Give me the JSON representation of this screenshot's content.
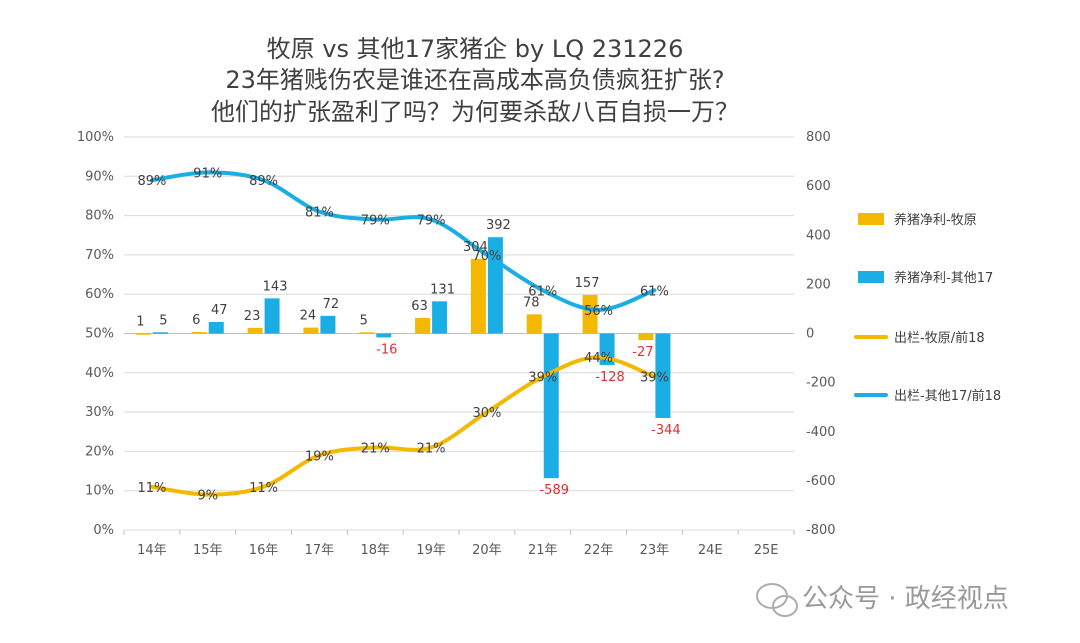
{
  "chart_data": {
    "type": "bar",
    "title": [
      "牧原 vs 其他17家猪企 by LQ 231226",
      "23年猪贱伤农是谁还在高成本高负债疯狂扩张?",
      "他们的扩张盈利了吗？为何要杀敌八百自损一万？"
    ],
    "categories": [
      "14年",
      "15年",
      "16年",
      "17年",
      "18年",
      "19年",
      "20年",
      "21年",
      "22年",
      "23年",
      "24E",
      "25E"
    ],
    "left_axis": {
      "ylim": [
        0,
        100
      ],
      "ticks": [
        "0%",
        "10%",
        "20%",
        "30%",
        "40%",
        "50%",
        "60%",
        "70%",
        "80%",
        "90%",
        "100%"
      ]
    },
    "right_axis": {
      "ylim": [
        -800,
        800
      ],
      "ticks": [
        "-800",
        "-600",
        "-400",
        "-200",
        "0",
        "200",
        "400",
        "600",
        "800"
      ]
    },
    "bar_series": [
      {
        "name": "养猪净利-牧原",
        "color": "#f5b800",
        "values": [
          1,
          6,
          23,
          24,
          5,
          63,
          304,
          78,
          157,
          -27,
          null,
          null
        ],
        "labels": [
          "1",
          "6",
          "23",
          "24",
          "5",
          "63",
          "304",
          "78",
          "157",
          "-27",
          "",
          ""
        ]
      },
      {
        "name": "养猪净利-其他17",
        "color": "#1aaee5",
        "values": [
          5,
          47,
          143,
          72,
          -16,
          131,
          392,
          -589,
          -128,
          -344,
          null,
          null
        ],
        "labels": [
          "5",
          "47",
          "143",
          "72",
          "-16",
          "131",
          "392",
          "-589",
          "-128",
          "-344",
          "",
          ""
        ]
      }
    ],
    "line_series": [
      {
        "name": "出栏-牧原/前18",
        "color": "#f5b800",
        "values": [
          11,
          9,
          11,
          19,
          21,
          21,
          30,
          39,
          44,
          39,
          null,
          null
        ],
        "labels": [
          "11%",
          "9%",
          "11%",
          "19%",
          "21%",
          "21%",
          "30%",
          "39%",
          "44%",
          "39%",
          "",
          ""
        ]
      },
      {
        "name": "出栏-其他17/前18",
        "color": "#1aaee5",
        "values": [
          89,
          91,
          89,
          81,
          79,
          79,
          70,
          61,
          56,
          61,
          null,
          null
        ],
        "labels": [
          "89%",
          "91%",
          "89%",
          "81%",
          "79%",
          "79%",
          "70%",
          "61%",
          "56%",
          "61%",
          "",
          ""
        ]
      }
    ],
    "grid": true,
    "legend": "right"
  },
  "watermark": "公众号 · 政经视点",
  "colors": {
    "negative_label": "#e03030",
    "grid": "#d9d9d9",
    "axis_text": "#595959"
  }
}
